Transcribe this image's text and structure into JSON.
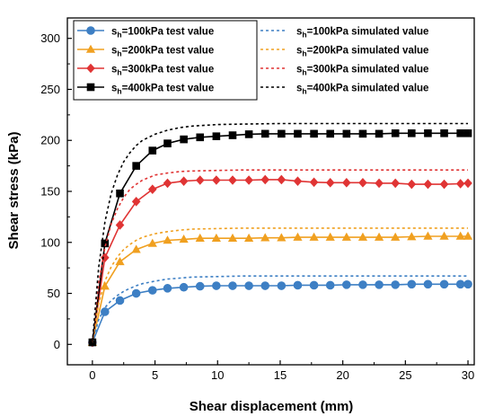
{
  "chart_data": {
    "type": "line",
    "title": "",
    "xlabel": "Shear displacement (mm)",
    "ylabel": "Shear stress (kPa)",
    "xlim": [
      -2,
      30.5
    ],
    "ylim": [
      -20,
      320
    ],
    "xticks": [
      0,
      5,
      10,
      15,
      20,
      25,
      30
    ],
    "yticks": [
      0,
      50,
      100,
      150,
      200,
      250,
      300
    ],
    "x_tick_labels": [
      "0",
      "5",
      "10",
      "15",
      "20",
      "25",
      "30"
    ],
    "y_tick_labels": [
      "0",
      "50",
      "100",
      "150",
      "200",
      "250",
      "300"
    ],
    "grid": false,
    "legend_position": "top, two columns",
    "series": [
      {
        "name_prefix": "s",
        "name_sub": "h",
        "name_suffix": "=100kPa test value",
        "kind": "test",
        "color": "#3d7fc4",
        "marker": "circle",
        "x": [
          0,
          1,
          2.2,
          3.5,
          4.8,
          6,
          7.3,
          8.6,
          9.9,
          11.2,
          12.5,
          13.8,
          15.1,
          16.4,
          17.7,
          19,
          20.3,
          21.6,
          22.9,
          24.2,
          25.5,
          26.8,
          28.1,
          29.4,
          30
        ],
        "y": [
          2,
          32,
          43,
          50,
          53,
          55,
          56,
          57,
          57.5,
          57.5,
          57.5,
          57.5,
          57.5,
          58,
          58,
          58,
          58.5,
          58.5,
          58.5,
          58.5,
          59,
          59,
          59,
          59,
          59
        ]
      },
      {
        "name_prefix": "s",
        "name_sub": "h",
        "name_suffix": "=200kPa test value",
        "kind": "test",
        "color": "#f0a020",
        "marker": "triangle",
        "x": [
          0,
          1,
          2.2,
          3.5,
          4.8,
          6,
          7.3,
          8.6,
          9.9,
          11.2,
          12.5,
          13.8,
          15.1,
          16.4,
          17.7,
          19,
          20.3,
          21.6,
          22.9,
          24.2,
          25.5,
          26.8,
          28.1,
          29.4,
          30
        ],
        "y": [
          2,
          57,
          81,
          93,
          99,
          102,
          103,
          104,
          104,
          104,
          104,
          104.5,
          104.5,
          105,
          105,
          105,
          105,
          105,
          105,
          105,
          105.5,
          106,
          106,
          106,
          106
        ]
      },
      {
        "name_prefix": "s",
        "name_sub": "h",
        "name_suffix": "=300kPa test value",
        "kind": "test",
        "color": "#e03434",
        "marker": "diamond",
        "x": [
          0,
          1,
          2.2,
          3.5,
          4.8,
          6,
          7.3,
          8.6,
          9.9,
          11.2,
          12.5,
          13.8,
          15.1,
          16.4,
          17.7,
          19,
          20.3,
          21.6,
          22.9,
          24.2,
          25.5,
          26.8,
          28.1,
          29.4,
          30
        ],
        "y": [
          2,
          85,
          117,
          140,
          152,
          158,
          160,
          161,
          161,
          161,
          161,
          161.5,
          161.5,
          160,
          159,
          158.5,
          158.5,
          158.5,
          158,
          158,
          157,
          157,
          157,
          157.5,
          158
        ]
      },
      {
        "name_prefix": "s",
        "name_sub": "h",
        "name_suffix": "=400kPa test value",
        "kind": "test",
        "color": "#000000",
        "marker": "square",
        "x": [
          0,
          1,
          2.2,
          3.5,
          4.8,
          6,
          7.3,
          8.6,
          9.9,
          11.2,
          12.5,
          13.8,
          15.1,
          16.4,
          17.7,
          19,
          20.3,
          21.6,
          22.9,
          24.2,
          25.5,
          26.8,
          28.1,
          29.4,
          30
        ],
        "y": [
          2,
          99,
          148,
          175,
          190,
          197,
          201,
          203,
          204,
          205,
          206,
          206.5,
          206.5,
          206.5,
          206.5,
          206.5,
          206.5,
          206.5,
          206.5,
          207,
          207,
          207,
          207,
          207,
          207
        ]
      },
      {
        "name_prefix": "s",
        "name_sub": "h",
        "name_suffix": "=100kPa simulated value",
        "kind": "sim",
        "color": "#3d7fc4",
        "x": [
          0,
          0.5,
          1,
          1.5,
          2,
          2.5,
          3,
          3.5,
          4,
          5,
          6,
          7,
          8,
          10,
          12,
          15,
          20,
          25,
          30
        ],
        "y": [
          2,
          24,
          36,
          43,
          48,
          52,
          55,
          57.5,
          59.5,
          62,
          64,
          65,
          66,
          66.5,
          67,
          67,
          67,
          67,
          67
        ]
      },
      {
        "name_prefix": "s",
        "name_sub": "h",
        "name_suffix": "=200kPa simulated value",
        "kind": "sim",
        "color": "#f0a020",
        "x": [
          0,
          0.5,
          1,
          1.5,
          2,
          2.5,
          3,
          3.5,
          4,
          5,
          6,
          7,
          8,
          10,
          12,
          15,
          20,
          25,
          30
        ],
        "y": [
          2,
          40,
          62,
          76,
          86,
          93,
          98,
          102,
          105,
          108.5,
          110.5,
          112,
          113,
          113.5,
          114,
          114,
          114,
          114,
          114
        ]
      },
      {
        "name_prefix": "s",
        "name_sub": "h",
        "name_suffix": "=300kPa simulated value",
        "kind": "sim",
        "color": "#e03434",
        "x": [
          0,
          0.5,
          1,
          1.5,
          2,
          2.5,
          3,
          3.5,
          4,
          5,
          6,
          7,
          8,
          10,
          12,
          15,
          20,
          25,
          30
        ],
        "y": [
          2,
          60,
          95,
          118,
          133,
          144,
          152,
          157,
          161,
          166,
          168,
          169.5,
          170,
          170.5,
          171,
          171,
          171,
          171,
          171
        ]
      },
      {
        "name_prefix": "s",
        "name_sub": "h",
        "name_suffix": "=400kPa simulated value",
        "kind": "sim",
        "color": "#000000",
        "x": [
          0,
          0.5,
          1,
          1.5,
          2,
          2.5,
          3,
          3.5,
          4,
          5,
          6,
          7,
          8,
          10,
          12,
          15,
          20,
          25,
          30
        ],
        "y": [
          2,
          75,
          120,
          148,
          166,
          179,
          188,
          195,
          200,
          206,
          210,
          212.5,
          214,
          215.5,
          216,
          216.5,
          216.5,
          216.5,
          216.5
        ]
      }
    ]
  }
}
